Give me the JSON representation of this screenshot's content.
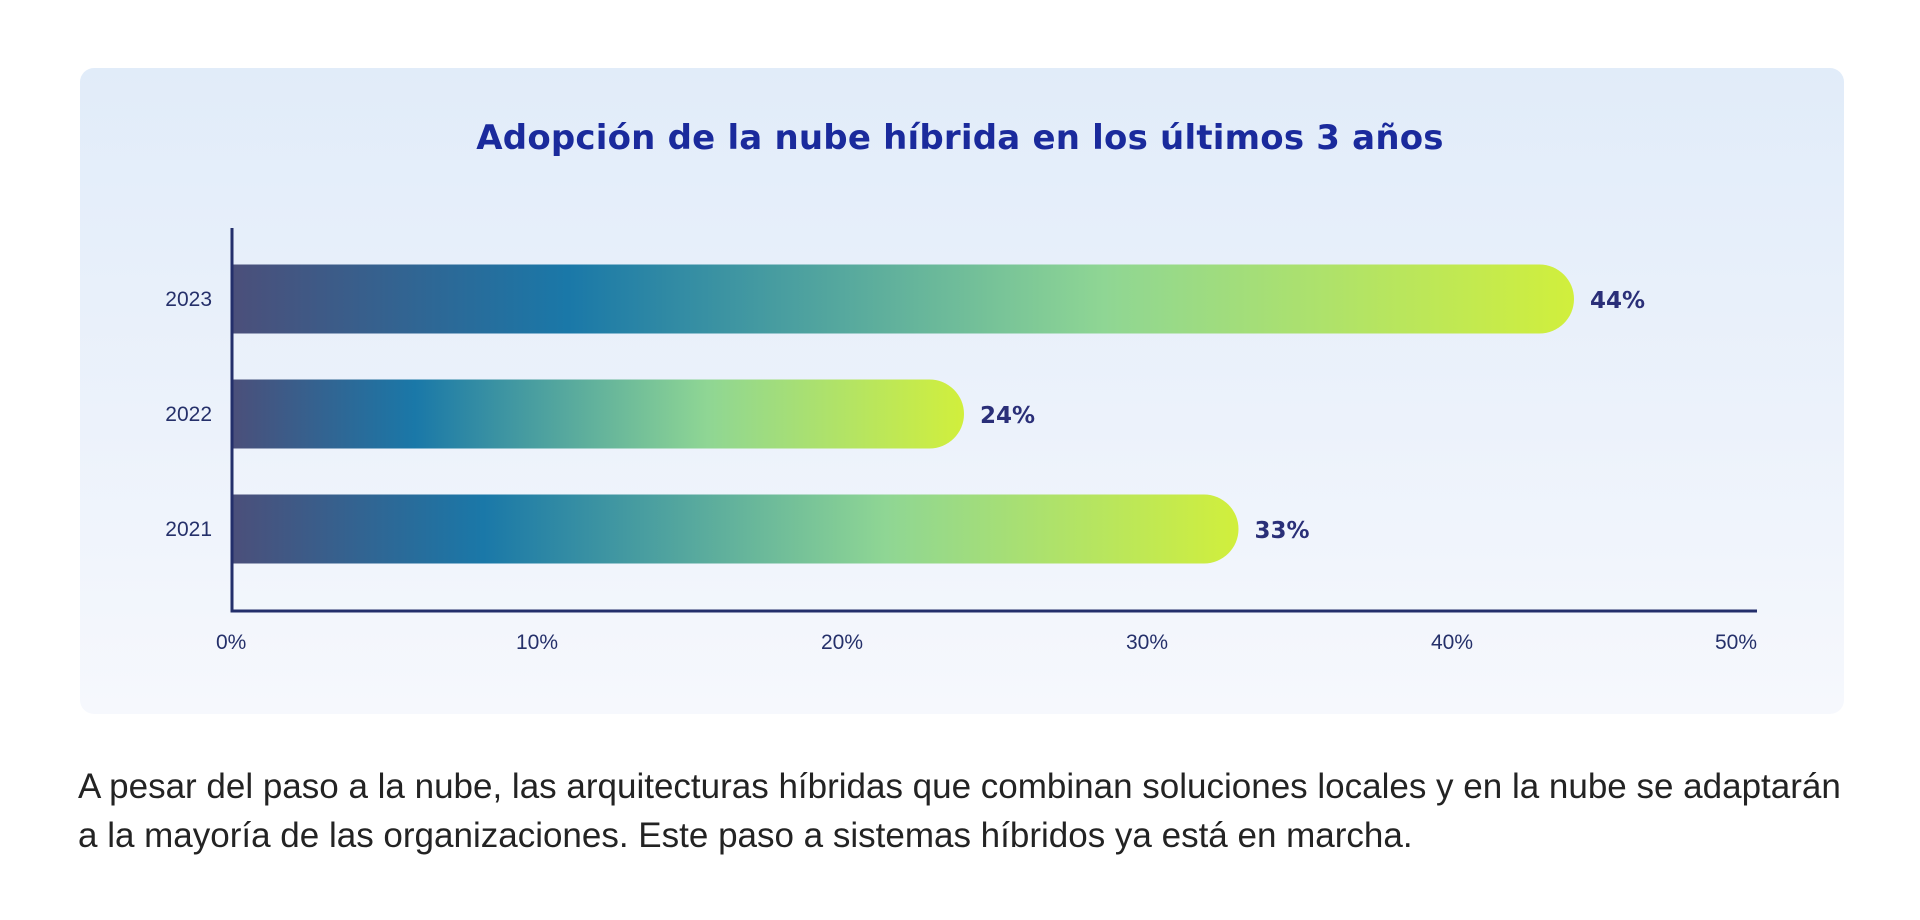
{
  "chart_data": {
    "type": "bar",
    "orientation": "horizontal",
    "title": "Adopción de la nube híbrida en los últimos 3 años",
    "categories": [
      "2023",
      "2022",
      "2021"
    ],
    "values": [
      44,
      24,
      33
    ],
    "value_labels": [
      "44%",
      "24%",
      "33%"
    ],
    "xlim": [
      0,
      50
    ],
    "xticks": [
      0,
      10,
      20,
      30,
      40,
      50
    ],
    "xtick_labels": [
      "0%",
      "10%",
      "20%",
      "30%",
      "40%",
      "50%"
    ],
    "xlabel": "",
    "ylabel": "",
    "grid": false,
    "bar_gradient": [
      "#4b4f7a",
      "#1a78a8",
      "#8fd694",
      "#d1ef3c"
    ],
    "axis_color": "#232f6b"
  },
  "caption": "A pesar del paso a la nube, las arquitecturas híbridas que combinan soluciones locales y en la nube se adaptarán a la mayoría de las organizaciones. Este paso a sistemas híbridos ya está en marcha."
}
